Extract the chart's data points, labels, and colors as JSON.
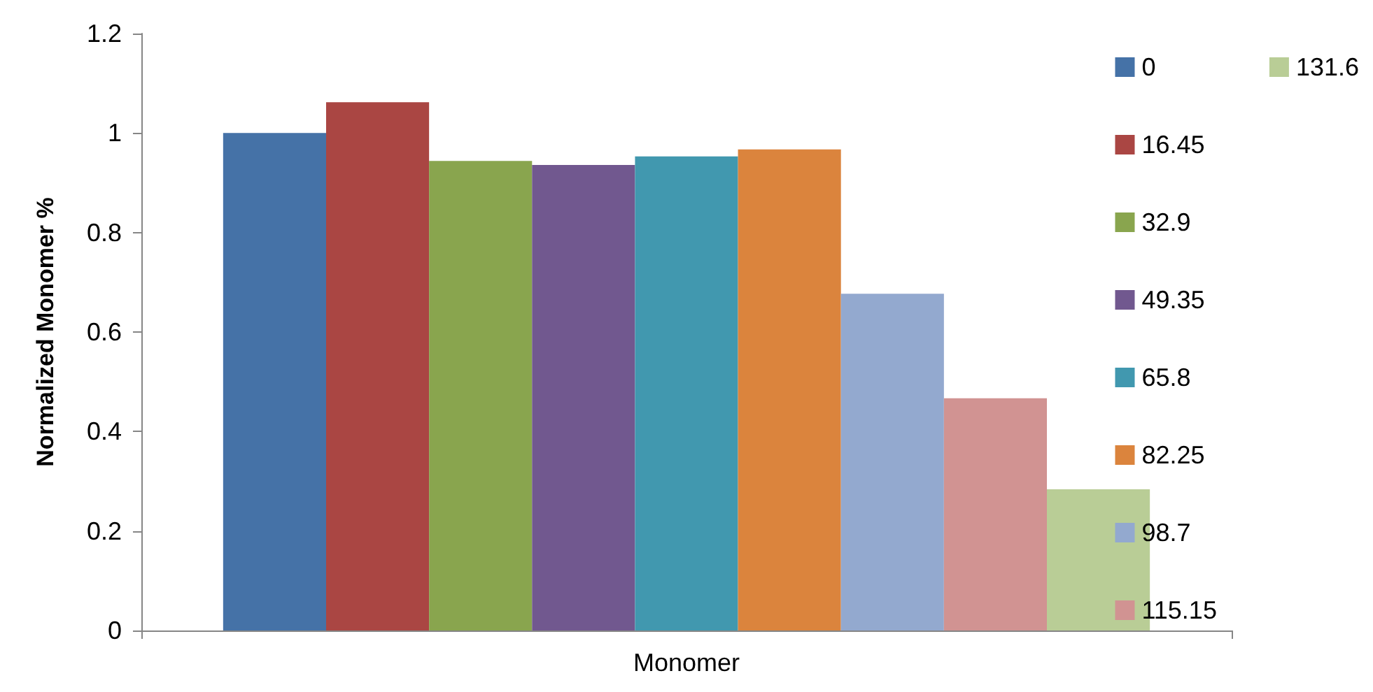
{
  "chart_data": {
    "type": "bar",
    "ylabel": "Normalized Monomer %",
    "categories": [
      "Monomer"
    ],
    "series": [
      {
        "name": "0",
        "color": "#4572a7",
        "values": [
          1.0
        ]
      },
      {
        "name": "16.45",
        "color": "#aa4643",
        "values": [
          1.062
        ]
      },
      {
        "name": "32.9",
        "color": "#89a54e",
        "values": [
          0.944
        ]
      },
      {
        "name": "49.35",
        "color": "#71588f",
        "values": [
          0.936
        ]
      },
      {
        "name": "65.8",
        "color": "#4198af",
        "values": [
          0.953
        ]
      },
      {
        "name": "82.25",
        "color": "#db843d",
        "values": [
          0.967
        ]
      },
      {
        "name": "98.7",
        "color": "#93a9cf",
        "values": [
          0.677
        ]
      },
      {
        "name": "115.15",
        "color": "#d19392",
        "values": [
          0.467
        ]
      },
      {
        "name": "131.6",
        "color": "#b9cd96",
        "values": [
          0.284
        ]
      }
    ],
    "ylim": [
      0,
      1.2
    ],
    "yticks": [
      0,
      0.2,
      0.4,
      0.6,
      0.8,
      1,
      1.2
    ],
    "grid": false,
    "legend": "right"
  }
}
